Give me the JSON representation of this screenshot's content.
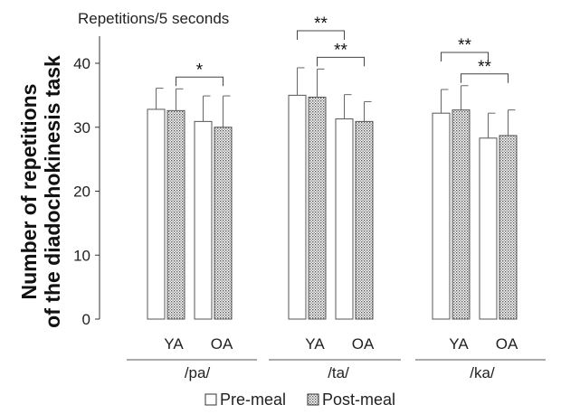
{
  "chart_data": {
    "type": "bar",
    "unit_label": "Repetitions/5 seconds",
    "ylabel_lines": [
      "Number of repetitions",
      "of the diadochokinesis task"
    ],
    "ylim": [
      0,
      40
    ],
    "yticks": [
      "0",
      "10",
      "20",
      "30",
      "40"
    ],
    "ytick_values": [
      0,
      10,
      20,
      30,
      40
    ],
    "groups": [
      {
        "label": "/pa/",
        "sublabels": [
          "YA",
          "OA"
        ],
        "bars": [
          {
            "age": "YA",
            "meal": "Pre-meal",
            "value": 32.8,
            "err": 3.3
          },
          {
            "age": "YA",
            "meal": "Post-meal",
            "value": 32.6,
            "err": 3.4
          },
          {
            "age": "OA",
            "meal": "Pre-meal",
            "value": 30.9,
            "err": 4.0
          },
          {
            "age": "OA",
            "meal": "Post-meal",
            "value": 30.0,
            "err": 4.9
          }
        ]
      },
      {
        "label": "/ta/",
        "sublabels": [
          "YA",
          "OA"
        ],
        "bars": [
          {
            "age": "YA",
            "meal": "Pre-meal",
            "value": 35.0,
            "err": 4.3
          },
          {
            "age": "YA",
            "meal": "Post-meal",
            "value": 34.7,
            "err": 4.4
          },
          {
            "age": "OA",
            "meal": "Pre-meal",
            "value": 31.3,
            "err": 3.8
          },
          {
            "age": "OA",
            "meal": "Post-meal",
            "value": 30.9,
            "err": 3.1
          }
        ]
      },
      {
        "label": "/ka/",
        "sublabels": [
          "YA",
          "OA"
        ],
        "bars": [
          {
            "age": "YA",
            "meal": "Pre-meal",
            "value": 32.2,
            "err": 3.7
          },
          {
            "age": "YA",
            "meal": "Post-meal",
            "value": 32.7,
            "err": 3.8
          },
          {
            "age": "OA",
            "meal": "Pre-meal",
            "value": 28.3,
            "err": 3.9
          },
          {
            "age": "OA",
            "meal": "Post-meal",
            "value": 28.7,
            "err": 4.0
          }
        ]
      }
    ],
    "significance": [
      {
        "group": 0,
        "from_bar": 1,
        "to_bar": 3,
        "label": "*"
      },
      {
        "group": 1,
        "from_bar": 0,
        "to_bar": 2,
        "label": "**"
      },
      {
        "group": 1,
        "from_bar": 1,
        "to_bar": 3,
        "label": "**"
      },
      {
        "group": 2,
        "from_bar": 0,
        "to_bar": 2,
        "label": "**"
      },
      {
        "group": 2,
        "from_bar": 1,
        "to_bar": 3,
        "label": "**"
      }
    ],
    "legend": [
      {
        "label": "Pre-meal",
        "pattern": "plain"
      },
      {
        "label": "Post-meal",
        "pattern": "dotted"
      }
    ],
    "legend_position": "bottom-center",
    "grid": false
  }
}
